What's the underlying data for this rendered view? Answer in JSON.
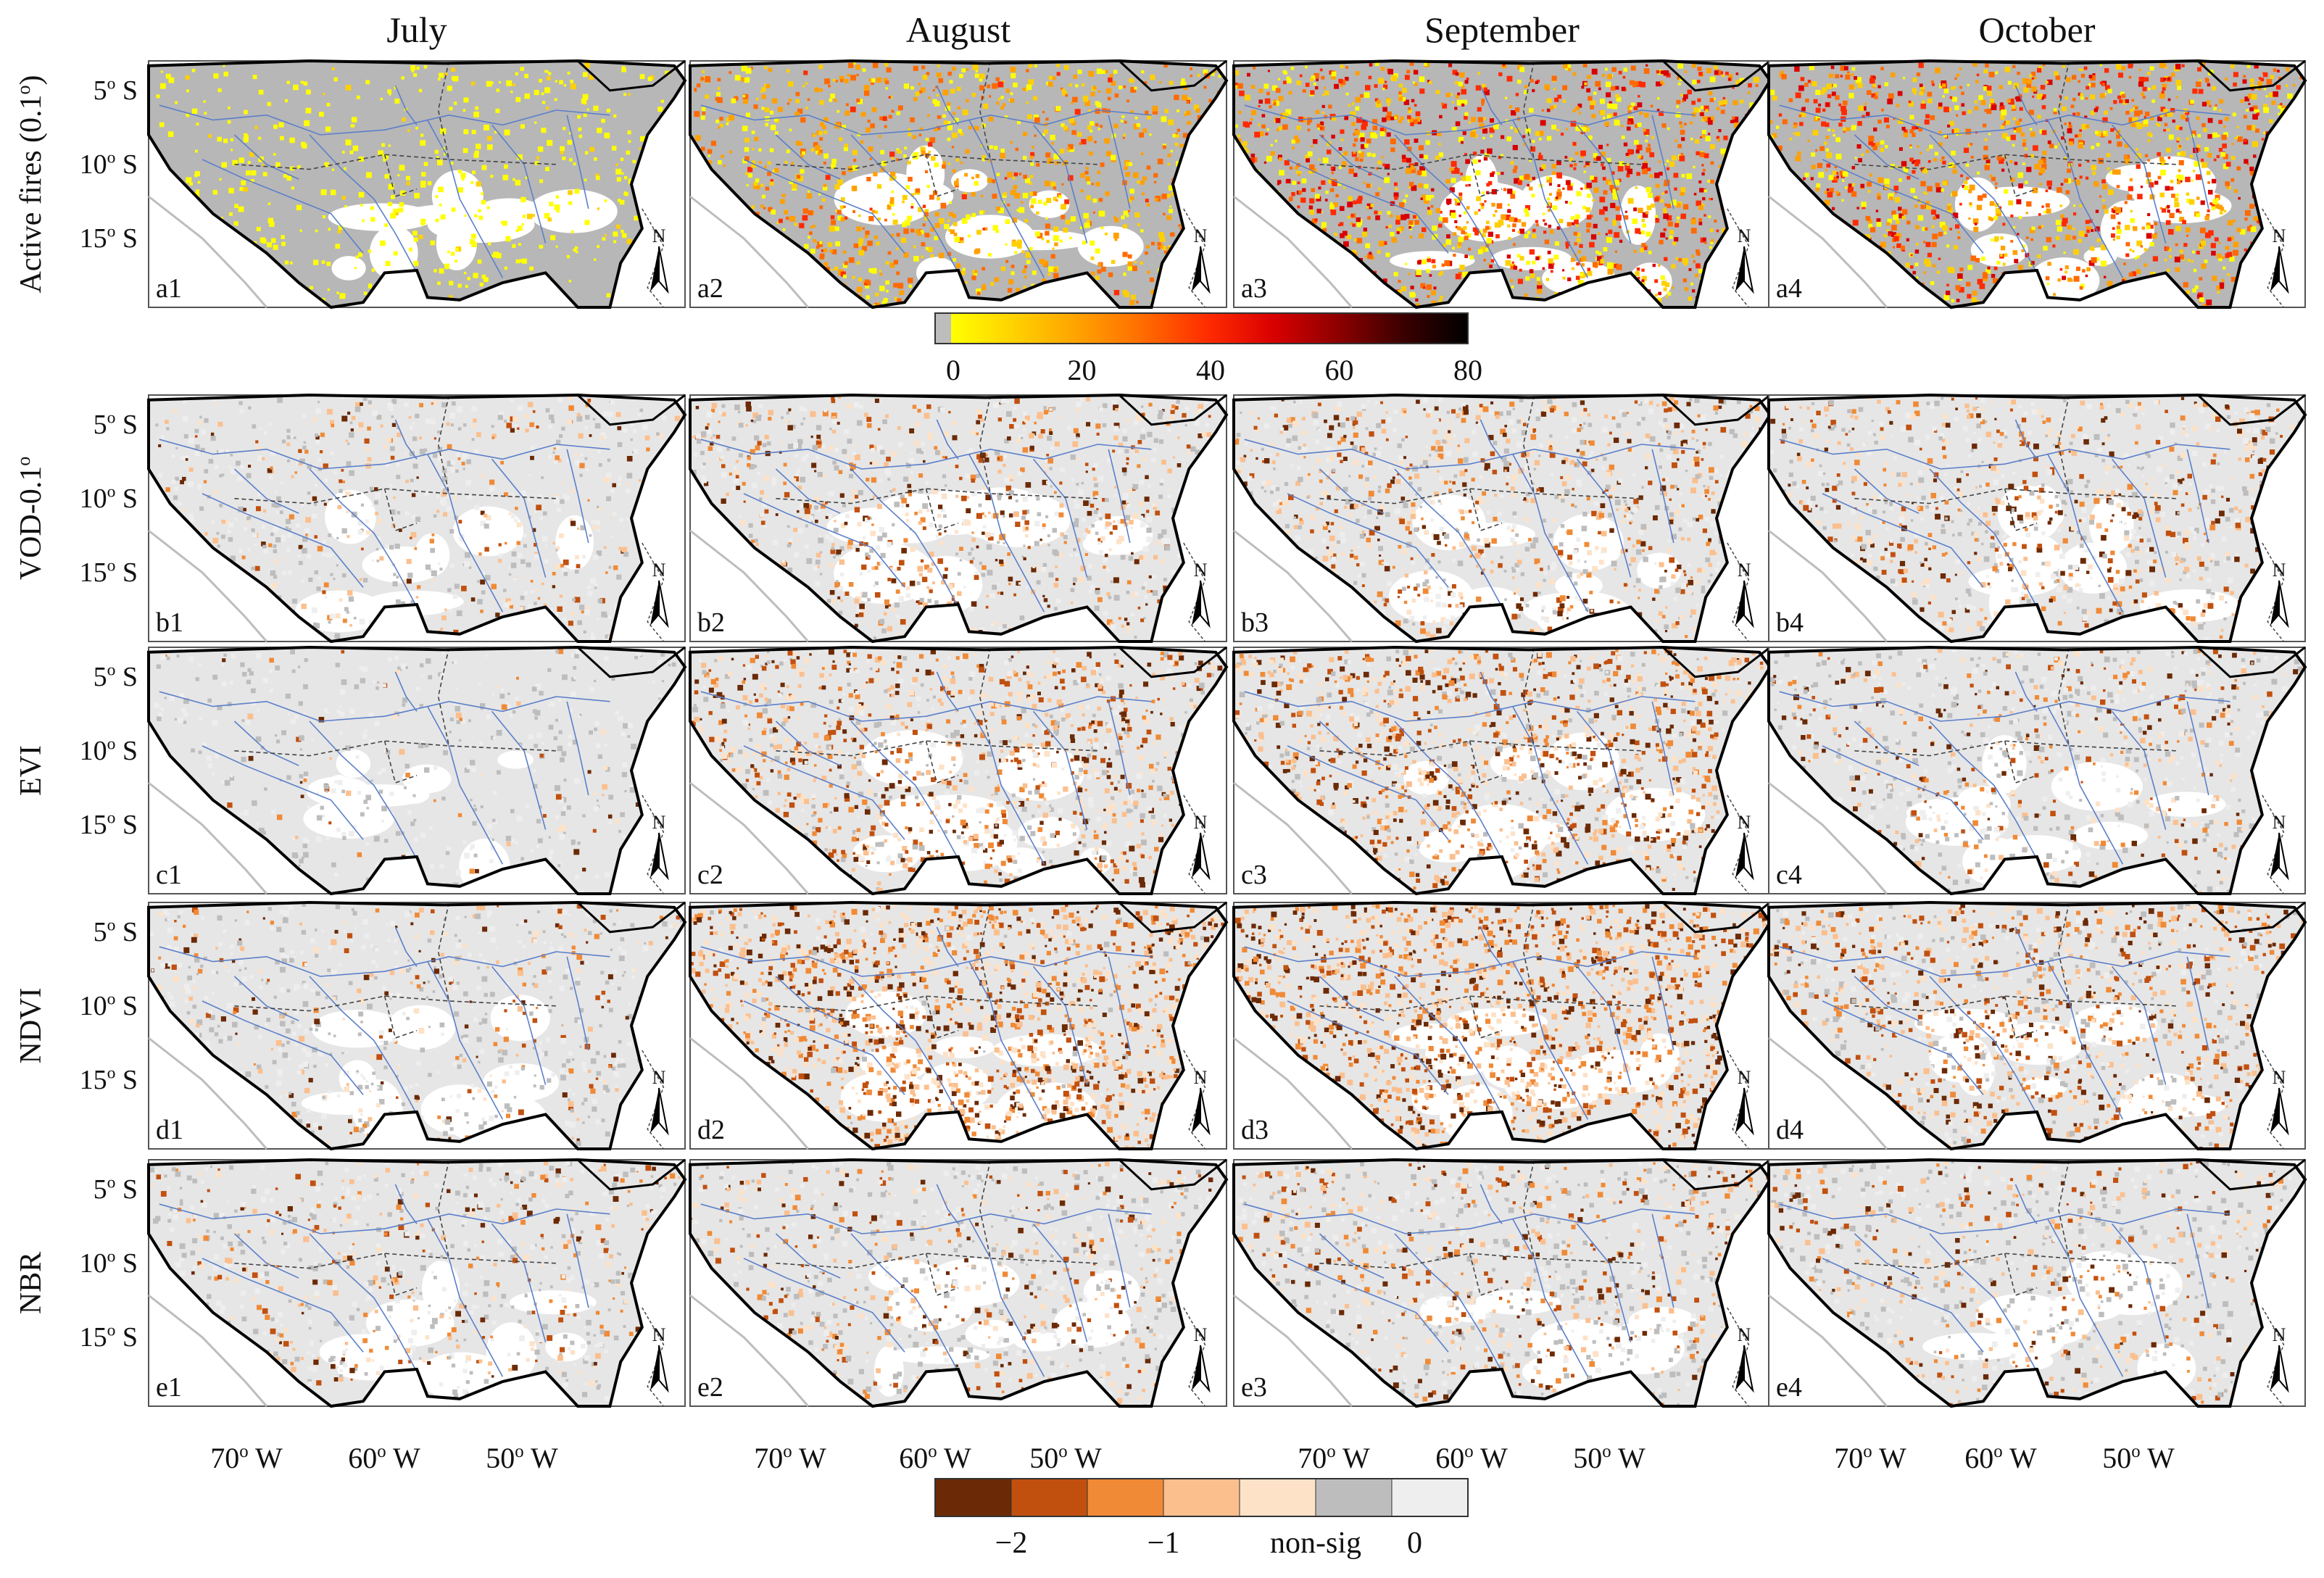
{
  "months": [
    "July",
    "August",
    "September",
    "October"
  ],
  "rows": [
    {
      "key": "a",
      "label": "Active fires (0.1°)",
      "panels": [
        "a1",
        "a2",
        "a3",
        "a4"
      ],
      "kind": "fire",
      "intensity": [
        0.15,
        0.55,
        0.8,
        0.75
      ]
    },
    {
      "key": "b",
      "label": "VOD-0.1°",
      "panels": [
        "b1",
        "b2",
        "b3",
        "b4"
      ],
      "kind": "anom",
      "intensity": [
        0.35,
        0.55,
        0.6,
        0.55
      ]
    },
    {
      "key": "c",
      "label": "EVI",
      "panels": [
        "c1",
        "c2",
        "c3",
        "c4"
      ],
      "kind": "anom",
      "intensity": [
        0.15,
        0.7,
        0.8,
        0.45
      ]
    },
    {
      "key": "d",
      "label": "NDVI",
      "panels": [
        "d1",
        "d2",
        "d3",
        "d4"
      ],
      "kind": "anom",
      "intensity": [
        0.35,
        0.95,
        1.0,
        0.7
      ]
    },
    {
      "key": "e",
      "label": "NBR",
      "panels": [
        "e1",
        "e2",
        "e3",
        "e4"
      ],
      "kind": "anom",
      "intensity": [
        0.4,
        0.45,
        0.55,
        0.45
      ]
    }
  ],
  "lat_ticks": [
    "5° S",
    "10° S",
    "15° S"
  ],
  "lon_ticks": [
    "70° W",
    "60° W",
    "50° W"
  ],
  "north_label": "N",
  "fire_colorbar": {
    "ticks": [
      "0",
      "20",
      "40",
      "60",
      "80"
    ],
    "colors": [
      "#bdbdbd",
      "#ffff00",
      "#ffd000",
      "#ffa000",
      "#ff6a00",
      "#ff2a00",
      "#d80000",
      "#8c0000",
      "#3a0000",
      "#000000"
    ]
  },
  "anomaly_colorbar": {
    "ticks": [
      "−2",
      "−1",
      "non-sig",
      "0"
    ],
    "colors": [
      "#6b2a05",
      "#c1500f",
      "#f08a36",
      "#fbbf8e",
      "#fde2c8",
      "#bdbdbd",
      "#eeeeee"
    ]
  },
  "colors": {
    "land": "#ffffff",
    "fire_bg": "#b7b7b7",
    "anom_bg": "#e6e6e6",
    "river": "#5b7fc9",
    "border": "#000000",
    "state_line": "#444444"
  }
}
